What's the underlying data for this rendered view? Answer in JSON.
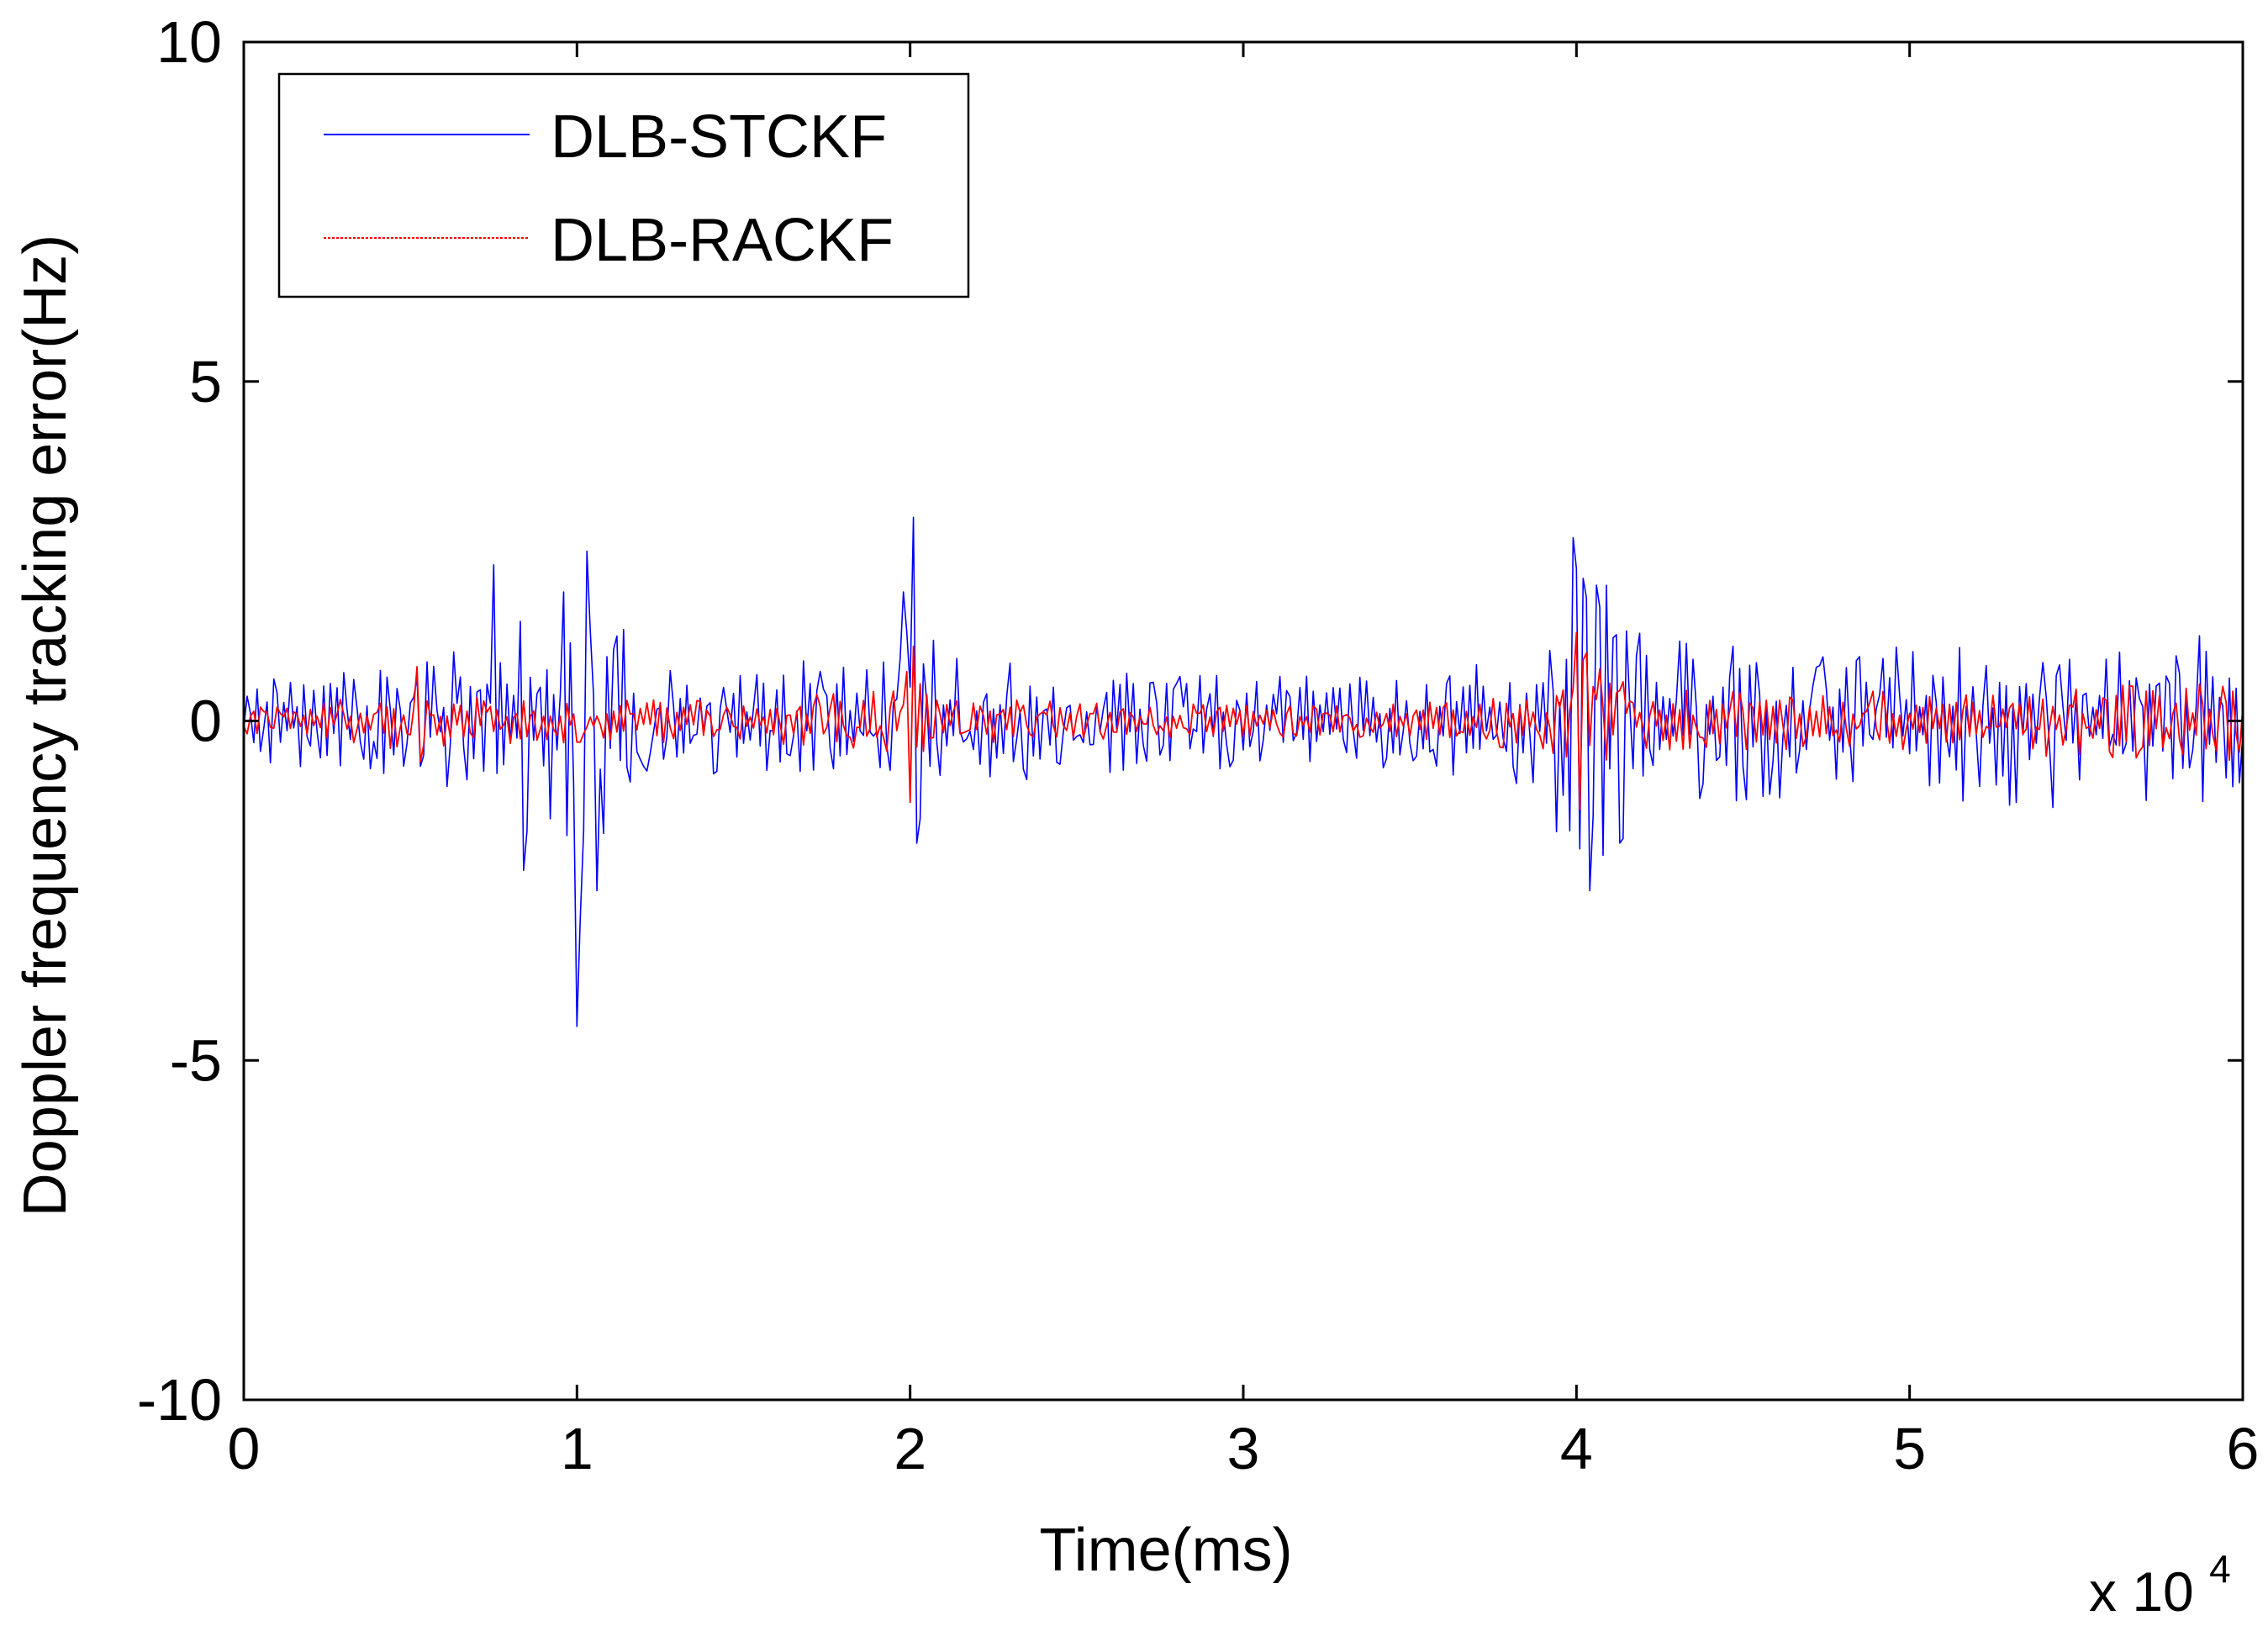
{
  "chart_data": {
    "type": "line",
    "xlabel": "Time(ms)",
    "ylabel": "Doppler frequency tracking error(Hz)",
    "x_exponent_label": "x 10",
    "x_exponent_power": "4",
    "xlim": [
      0,
      60000
    ],
    "ylim": [
      -10,
      10
    ],
    "xticks": [
      0,
      10000,
      20000,
      30000,
      40000,
      50000,
      60000
    ],
    "xtick_labels": [
      "0",
      "1",
      "2",
      "3",
      "4",
      "5",
      "6"
    ],
    "yticks": [
      -10,
      -5,
      0,
      5,
      10
    ],
    "ytick_labels": [
      "-10",
      "-5",
      "0",
      "5",
      "10"
    ],
    "grid": false,
    "legend_position": "top-left",
    "sample_interval_ms": 100,
    "series": [
      {
        "name": "DLB-STCKF",
        "color": "#0000ff",
        "envelope": {
          "x": [
            0,
            5000,
            7500,
            8000,
            9000,
            10000,
            10500,
            11000,
            12000,
            15000,
            19000,
            20000,
            21000,
            25000,
            30000,
            35000,
            39000,
            40000,
            41000,
            42000,
            45000,
            50000,
            55000,
            60000
          ],
          "amplitude": [
            0.6,
            0.9,
            1.3,
            1.6,
            2.0,
            2.4,
            2.1,
            1.6,
            1.1,
            0.8,
            1.0,
            2.6,
            1.0,
            0.8,
            0.7,
            0.7,
            1.0,
            2.6,
            2.0,
            1.4,
            1.2,
            1.2,
            1.3,
            1.3
          ]
        },
        "spikes": [
          {
            "x": 7500,
            "y": 2.3
          },
          {
            "x": 8400,
            "y": -2.2
          },
          {
            "x": 9600,
            "y": 1.9
          },
          {
            "x": 10000,
            "y": -4.5
          },
          {
            "x": 10100,
            "y": -2.9
          },
          {
            "x": 10300,
            "y": 2.5
          },
          {
            "x": 10600,
            "y": -2.5
          },
          {
            "x": 19800,
            "y": 1.9
          },
          {
            "x": 20100,
            "y": 3.0
          },
          {
            "x": 20200,
            "y": -1.8
          },
          {
            "x": 39900,
            "y": 2.7
          },
          {
            "x": 40200,
            "y": 2.1
          },
          {
            "x": 40400,
            "y": -2.5
          },
          {
            "x": 40600,
            "y": 2.0
          }
        ]
      },
      {
        "name": "DLB-RACKF",
        "color": "#ff0000",
        "envelope": {
          "x": [
            0,
            5000,
            6000,
            9000,
            10000,
            15000,
            19500,
            20000,
            20500,
            25000,
            30000,
            35000,
            39500,
            40000,
            41000,
            42000,
            45000,
            50000,
            55000,
            60000
          ],
          "amplitude": [
            0.25,
            0.5,
            0.4,
            0.3,
            0.35,
            0.3,
            0.5,
            0.9,
            0.4,
            0.3,
            0.25,
            0.25,
            0.5,
            1.2,
            0.7,
            0.5,
            0.45,
            0.45,
            0.55,
            0.6
          ]
        },
        "spikes": [
          {
            "x": 5200,
            "y": 0.8
          },
          {
            "x": 5300,
            "y": -0.6
          },
          {
            "x": 20000,
            "y": -1.2
          },
          {
            "x": 20100,
            "y": 1.1
          },
          {
            "x": 40000,
            "y": 1.3
          },
          {
            "x": 40100,
            "y": -1.3
          },
          {
            "x": 40300,
            "y": 1.0
          }
        ]
      }
    ]
  }
}
